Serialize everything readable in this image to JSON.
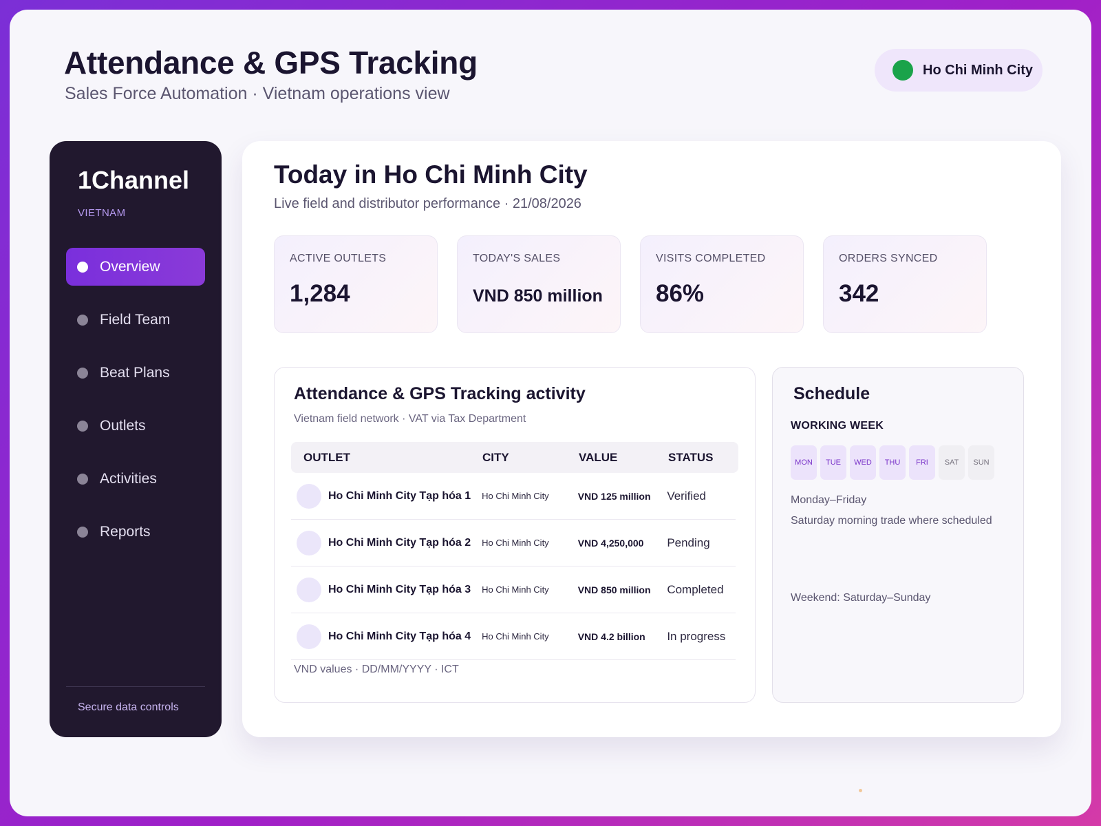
{
  "header": {
    "title": "Attendance & GPS Tracking",
    "subtitle": "Sales Force Automation · Vietnam operations view",
    "city_pill": {
      "label": "Ho Chi Minh City",
      "status_color": "#1aa34a"
    }
  },
  "sidebar": {
    "brand": "1Channel",
    "country": "VIETNAM",
    "items": [
      {
        "label": "Overview",
        "active": true
      },
      {
        "label": "Field Team",
        "active": false
      },
      {
        "label": "Beat Plans",
        "active": false
      },
      {
        "label": "Outlets",
        "active": false
      },
      {
        "label": "Activities",
        "active": false
      },
      {
        "label": "Reports",
        "active": false
      }
    ],
    "footer": "Secure data controls"
  },
  "main": {
    "title": "Today in Ho Chi Minh City",
    "subtitle": "Live field and distributor performance · 21/08/2026",
    "kpis": [
      {
        "label": "ACTIVE OUTLETS",
        "value": "1,284"
      },
      {
        "label": "TODAY'S SALES",
        "value": "VND 850 million"
      },
      {
        "label": "VISITS COMPLETED",
        "value": "86%"
      },
      {
        "label": "ORDERS SYNCED",
        "value": "342"
      }
    ]
  },
  "activity": {
    "title": "Attendance & GPS Tracking activity",
    "subtitle": "Vietnam field network · VAT via Tax Department",
    "columns": {
      "outlet": "OUTLET",
      "city": "CITY",
      "value": "VALUE",
      "status": "STATUS"
    },
    "rows": [
      {
        "outlet": "Ho Chi Minh City Tạp hóa 1",
        "city": "Ho Chi Minh City",
        "value": "VND 125 million",
        "status": "Verified"
      },
      {
        "outlet": "Ho Chi Minh City Tạp hóa 2",
        "city": "Ho Chi Minh City",
        "value": "VND 4,250,000",
        "status": "Pending"
      },
      {
        "outlet": "Ho Chi Minh City Tạp hóa 3",
        "city": "Ho Chi Minh City",
        "value": "VND 850 million",
        "status": "Completed"
      },
      {
        "outlet": "Ho Chi Minh City Tạp hóa 4",
        "city": "Ho Chi Minh City",
        "value": "VND 4.2 billion",
        "status": "In progress"
      }
    ],
    "footer": "VND values · DD/MM/YYYY · ICT"
  },
  "schedule": {
    "title": "Schedule",
    "label": "WORKING WEEK",
    "days": [
      {
        "label": "MON",
        "working": true
      },
      {
        "label": "TUE",
        "working": true
      },
      {
        "label": "WED",
        "working": true
      },
      {
        "label": "THU",
        "working": true
      },
      {
        "label": "FRI",
        "working": true
      },
      {
        "label": "SAT",
        "working": false
      },
      {
        "label": "SUN",
        "working": false
      }
    ],
    "hours": "Monday–Friday",
    "note": "Saturday morning trade where scheduled",
    "weekend": "Weekend: Saturday–Sunday"
  },
  "colors": {
    "accent": "#7a2fdc",
    "sidebar_bg": "#21182e",
    "status_green": "#1aa34a"
  }
}
